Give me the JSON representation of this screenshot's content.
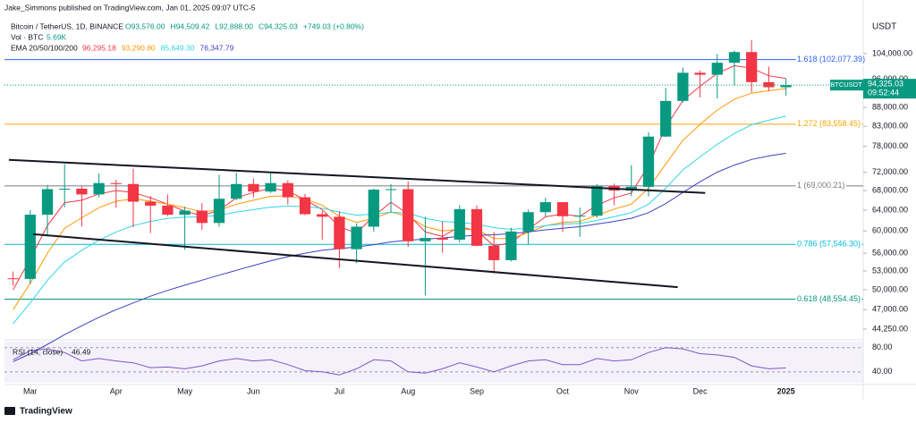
{
  "header": {
    "publisher": "Jake_Simmons published on TradingView.com, Jan 01, 2025 09:07 UTC-5",
    "footer": "TradingView"
  },
  "chart_data": [
    {
      "type": "candlestick",
      "title": "Bitcoin / TetherUS, 1D, BINANCE",
      "ohlc": [
        "O93,576.00",
        "H94,509.42",
        "L92,888.00",
        "C94,325.03",
        "+749.03 (+0.80%)"
      ],
      "volume_label": "Vol · BTC",
      "volume_value": "5.69K",
      "ema_label": "EMA 20/50/100/200",
      "currency": "USDT",
      "symbol_tag": "BTCUSDT",
      "last_price": {
        "value": 94325.03,
        "label": "94,325.03"
      },
      "countdown": "09:52:44",
      "up_color": "#089981",
      "down_color": "#f23645",
      "categories": [
        null,
        "Mar",
        null,
        null,
        null,
        null,
        "Apr",
        null,
        null,
        null,
        "May",
        null,
        null,
        null,
        "Jun",
        null,
        null,
        null,
        null,
        "Jul",
        null,
        null,
        null,
        "Aug",
        null,
        null,
        null,
        "Sep",
        null,
        null,
        null,
        null,
        "Oct",
        null,
        null,
        null,
        "Nov",
        null,
        null,
        null,
        "Dec",
        null,
        null,
        null,
        null,
        "2025"
      ],
      "open": [
        51800,
        51700,
        63100,
        68300,
        68400,
        67200,
        69600,
        69400,
        65700,
        64900,
        63100,
        63900,
        61500,
        66300,
        69400,
        67800,
        69600,
        66600,
        63200,
        62700,
        56700,
        60800,
        68200,
        68300,
        58100,
        58700,
        58400,
        64200,
        57300,
        54800,
        59900,
        63600,
        65600,
        62800,
        62900,
        69000,
        68000,
        68800,
        80400,
        89800,
        98000,
        97400,
        101100,
        104500,
        95200,
        93700
      ],
      "high": [
        52900,
        64000,
        69200,
        73800,
        68900,
        71700,
        70300,
        72800,
        66900,
        67200,
        64700,
        65400,
        71400,
        71900,
        70600,
        72000,
        70200,
        67300,
        63800,
        63800,
        61400,
        68400,
        69400,
        70000,
        62700,
        61800,
        65000,
        64900,
        59800,
        60600,
        64100,
        66500,
        65600,
        64500,
        69400,
        69500,
        73600,
        81500,
        93500,
        99600,
        98700,
        103900,
        105000,
        108400,
        99900,
        96200
      ],
      "low": [
        50600,
        50900,
        59000,
        64600,
        60800,
        66600,
        64500,
        60700,
        59600,
        62800,
        56600,
        60200,
        60800,
        66000,
        66600,
        67500,
        65100,
        63000,
        58400,
        53500,
        54300,
        59900,
        63500,
        57100,
        49100,
        56100,
        57900,
        57200,
        52600,
        54600,
        57500,
        62700,
        59800,
        58900,
        62500,
        65000,
        66800,
        66800,
        80300,
        89400,
        90800,
        90500,
        94200,
        92200,
        92500,
        91300
      ],
      "close": [
        51700,
        63100,
        68300,
        68400,
        67200,
        69600,
        69400,
        65700,
        64900,
        63100,
        63900,
        61500,
        66300,
        69400,
        67800,
        69600,
        66600,
        63200,
        62700,
        56700,
        60800,
        68200,
        68300,
        58100,
        58700,
        58400,
        64200,
        57300,
        54800,
        59900,
        63600,
        65600,
        62800,
        62900,
        69000,
        68000,
        68800,
        80400,
        89800,
        98000,
        97400,
        101100,
        104500,
        95200,
        93700,
        94325.03
      ],
      "series": [
        {
          "color": "#f23645",
          "value_label": "96,295.18",
          "values": [
            50000,
            55000,
            61000,
            65500,
            66000,
            67300,
            68000,
            67600,
            66500,
            65200,
            63800,
            62900,
            64000,
            66500,
            67600,
            68500,
            67900,
            66100,
            64100,
            60800,
            59600,
            62800,
            65600,
            63200,
            59800,
            59000,
            60800,
            60000,
            57300,
            57800,
            60300,
            62700,
            63200,
            62800,
            65000,
            66500,
            67500,
            73500,
            82800,
            89900,
            94000,
            97800,
            100200,
            99400,
            97100,
            96295.18
          ]
        },
        {
          "color": "#ff9800",
          "value_label": "93,290.80",
          "values": [
            47000,
            51000,
            56000,
            60500,
            62500,
            64500,
            65800,
            66300,
            65800,
            65200,
            64500,
            63700,
            64000,
            65200,
            66000,
            66800,
            66900,
            66200,
            65000,
            62800,
            61600,
            62400,
            63600,
            62800,
            60800,
            60000,
            60300,
            60200,
            58600,
            58600,
            59700,
            61000,
            61600,
            61800,
            63000,
            64200,
            65200,
            68500,
            73800,
            79500,
            83500,
            87300,
            90300,
            92000,
            92700,
            93290.8
          ]
        },
        {
          "color": "#2fd6e8",
          "value_label": "85,649.30",
          "values": [
            45000,
            48000,
            51500,
            54500,
            56500,
            58300,
            59800,
            61000,
            61800,
            62400,
            62600,
            62700,
            63000,
            63600,
            64100,
            64600,
            64800,
            64700,
            64400,
            63600,
            63000,
            63200,
            63600,
            63400,
            62400,
            61800,
            61600,
            61300,
            60600,
            60300,
            60500,
            61000,
            61300,
            61400,
            62000,
            62700,
            63500,
            65200,
            68500,
            72500,
            75500,
            78500,
            81200,
            83400,
            84600,
            85649.3
          ]
        },
        {
          "color": "#3f3fc0",
          "value_label": "76,347.79",
          "values": [
            40000,
            41000,
            42200,
            43500,
            44700,
            45900,
            47000,
            48000,
            49000,
            49900,
            50700,
            51500,
            52300,
            53100,
            53900,
            54700,
            55400,
            56000,
            56500,
            56800,
            57100,
            57500,
            58000,
            58300,
            58500,
            58700,
            59000,
            59200,
            59300,
            59500,
            59800,
            60200,
            60500,
            60800,
            61300,
            61800,
            62400,
            63500,
            65300,
            67600,
            69900,
            72000,
            73600,
            74900,
            75700,
            76347.79
          ]
        }
      ],
      "ylim": [
        42800,
        118800
      ],
      "log_scale": true,
      "yticks": [
        {
          "value": 104000,
          "label": "104,000.00"
        },
        {
          "value": 96000,
          "label": "96,000.00"
        },
        {
          "value": 88000,
          "label": "88,000.00"
        },
        {
          "value": 83000,
          "label": "83,000.00"
        },
        {
          "value": 78000,
          "label": "78,000.00"
        },
        {
          "value": 72000,
          "label": "72,000.00"
        },
        {
          "value": 68000,
          "label": "68,000.00"
        },
        {
          "value": 64000,
          "label": "64,000.00"
        },
        {
          "value": 60000,
          "label": "60,000.00"
        },
        {
          "value": 56000,
          "label": "56,000.00"
        },
        {
          "value": 53000,
          "label": "53,000.00"
        },
        {
          "value": 50000,
          "label": "50,000.00"
        },
        {
          "value": 47000,
          "label": "47,000.00"
        },
        {
          "value": 44250,
          "label": "44,250.00"
        }
      ],
      "fib_levels": [
        {
          "label": "1.618 (102,077.39)",
          "value": 102077.39,
          "color": "#2962ff"
        },
        {
          "label": "1.272 (83,558.45)",
          "value": 83558.45,
          "color": "#f7a600"
        },
        {
          "label": "1 (69,000.21)",
          "value": 69000.21,
          "color": "#787b86"
        },
        {
          "label": "0.786 (57,546.30)",
          "value": 57546.3,
          "color": "#00bcd4"
        },
        {
          "label": "0.618 (48,554.45)",
          "value": 48554.45,
          "color": "#089981"
        }
      ],
      "trendlines": [
        {
          "x": [
            -0.24,
            40.3
          ],
          "y": [
            74800,
            67500
          ]
        },
        {
          "x": [
            1.17,
            38.7
          ],
          "y": [
            59400,
            50400
          ]
        }
      ]
    },
    {
      "type": "line",
      "title": "RSI (14, close)",
      "legend_value": "46.49",
      "color": "#7e57c2",
      "values": [
        60,
        75,
        78,
        72,
        58,
        62,
        58,
        55,
        47,
        48,
        45,
        50,
        58,
        62,
        58,
        60,
        52,
        42,
        40,
        35,
        45,
        60,
        58,
        40,
        38,
        45,
        55,
        48,
        40,
        50,
        58,
        60,
        52,
        52,
        62,
        58,
        60,
        72,
        80,
        78,
        70,
        68,
        64,
        50,
        45,
        46.49
      ],
      "ylim": [
        22,
        90
      ],
      "yticks": [
        {
          "value": 80,
          "label": "80.00"
        },
        {
          "value": 40,
          "label": "40.00"
        }
      ]
    }
  ]
}
